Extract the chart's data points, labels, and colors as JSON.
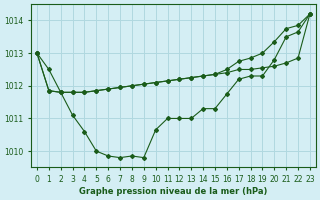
{
  "title": "Graphe pression niveau de la mer (hPa)",
  "background_color": "#d4eef4",
  "grid_color": "#b0d8e0",
  "line_color": "#1a5c1a",
  "xlim": [
    -0.5,
    23.5
  ],
  "ylim": [
    1009.5,
    1014.5
  ],
  "yticks": [
    1010,
    1011,
    1012,
    1013,
    1014
  ],
  "xticks": [
    0,
    1,
    2,
    3,
    4,
    5,
    6,
    7,
    8,
    9,
    10,
    11,
    12,
    13,
    14,
    15,
    16,
    17,
    18,
    19,
    20,
    21,
    22,
    23
  ],
  "series1_x": [
    0,
    1,
    2,
    3,
    4,
    5,
    6,
    7,
    8,
    9,
    10,
    11,
    12,
    13,
    14,
    15,
    16,
    17,
    18,
    19,
    20,
    21,
    22,
    23
  ],
  "series1_y": [
    1013.0,
    1012.5,
    1011.8,
    1011.1,
    1010.6,
    1010.0,
    1009.85,
    1009.8,
    1009.85,
    1009.8,
    1010.65,
    1011.0,
    1011.0,
    1011.0,
    1011.3,
    1011.3,
    1011.75,
    1012.2,
    1012.3,
    1012.3,
    1012.8,
    1013.5,
    1013.65,
    1014.2
  ],
  "series2_x": [
    0,
    1,
    2,
    3,
    4,
    5,
    6,
    7,
    8,
    9,
    10,
    11,
    12,
    13,
    14,
    15,
    16,
    17,
    18,
    19,
    20,
    21,
    22,
    23
  ],
  "series2_y": [
    1013.0,
    1011.85,
    1011.8,
    1011.8,
    1011.8,
    1011.85,
    1011.9,
    1011.95,
    1012.0,
    1012.05,
    1012.1,
    1012.15,
    1012.2,
    1012.25,
    1012.3,
    1012.35,
    1012.4,
    1012.5,
    1012.5,
    1012.55,
    1012.6,
    1012.7,
    1012.85,
    1014.2
  ],
  "series3_x": [
    0,
    1,
    2,
    3,
    4,
    5,
    6,
    7,
    8,
    9,
    10,
    11,
    12,
    13,
    14,
    15,
    16,
    17,
    18,
    19,
    20,
    21,
    22,
    23
  ],
  "series3_y": [
    1013.0,
    1011.85,
    1011.8,
    1011.8,
    1011.8,
    1011.85,
    1011.9,
    1011.95,
    1012.0,
    1012.05,
    1012.1,
    1012.15,
    1012.2,
    1012.25,
    1012.3,
    1012.35,
    1012.5,
    1012.75,
    1012.85,
    1013.0,
    1013.35,
    1013.75,
    1013.85,
    1014.2
  ]
}
